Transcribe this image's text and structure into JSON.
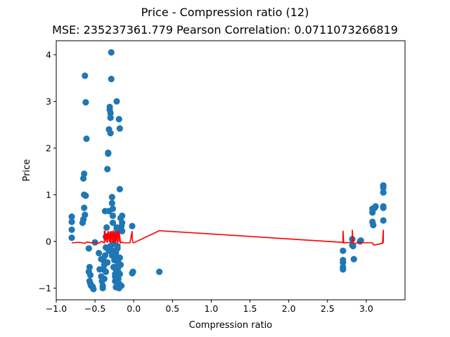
{
  "chart_data": {
    "type": "scatter",
    "title": "Price - Compression ratio (12)",
    "subtitle": "MSE: 235237361.779 Pearson Correlation: 0.0711073266819",
    "xlabel": "Compression ratio",
    "ylabel": "Price",
    "xlim": [
      -1.0,
      3.5
    ],
    "ylim": [
      -1.25,
      4.3
    ],
    "xticks": [
      "−1.0",
      "−0.5",
      "0.0",
      "0.5",
      "1.0",
      "1.5",
      "2.0",
      "2.5",
      "3.0"
    ],
    "xtick_values": [
      -1.0,
      -0.5,
      0.0,
      0.5,
      1.0,
      1.5,
      2.0,
      2.5,
      3.0
    ],
    "yticks": [
      "−1",
      "0",
      "1",
      "2",
      "3",
      "4"
    ],
    "ytick_values": [
      -1,
      0,
      1,
      2,
      3,
      4
    ],
    "grid": false,
    "colors": {
      "scatter": "#1f77b4",
      "line": "#ff0000"
    },
    "scatter": {
      "x": [
        -0.8,
        -0.8,
        -0.8,
        -0.8,
        -0.64,
        -0.63,
        -0.65,
        -0.66,
        -0.65,
        -0.64,
        -0.64,
        -0.62,
        -0.63,
        -0.62,
        -0.61,
        -0.58,
        -0.57,
        -0.57,
        -0.58,
        -0.56,
        -0.56,
        -0.55,
        -0.53,
        -0.52,
        -0.5,
        -0.45,
        -0.44,
        -0.42,
        -0.41,
        -0.4,
        -0.4,
        -0.39,
        -0.38,
        -0.37,
        -0.37,
        -0.36,
        -0.36,
        -0.35,
        -0.34,
        -0.33,
        -0.33,
        -0.32,
        -0.31,
        -0.31,
        -0.3,
        -0.3,
        -0.3,
        -0.29,
        -0.29,
        -0.28,
        -0.28,
        -0.27,
        -0.27,
        -0.27,
        -0.26,
        -0.26,
        -0.25,
        -0.25,
        -0.25,
        -0.24,
        -0.24,
        -0.23,
        -0.23,
        -0.23,
        -0.22,
        -0.22,
        -0.22,
        -0.21,
        -0.21,
        -0.21,
        -0.2,
        -0.2,
        -0.2,
        -0.2,
        -0.19,
        -0.19,
        -0.19,
        -0.18,
        -0.18,
        -0.18,
        -0.18,
        -0.17,
        -0.16,
        -0.15,
        -0.15,
        -0.15,
        -0.38,
        -0.39,
        -0.28,
        -0.2,
        -0.21,
        -0.42,
        -0.36,
        -0.34,
        -0.32,
        -0.24,
        -0.26,
        -0.23,
        -0.17,
        -0.16,
        -0.22,
        -0.3,
        -0.32,
        -0.02,
        -0.02,
        -0.01,
        0.33,
        2.7,
        2.7,
        2.7,
        2.7,
        2.7,
        2.82,
        2.82,
        2.84,
        2.83,
        2.92,
        2.93,
        3.08,
        3.08,
        3.08,
        3.09,
        3.11,
        3.12,
        3.22,
        3.22,
        3.22,
        3.22,
        3.22,
        3.22
      ],
      "y": [
        0.53,
        0.42,
        0.25,
        0.08,
        0.72,
        0.57,
        0.47,
        0.4,
        1.35,
        1.45,
        1.0,
        0.98,
        3.55,
        2.98,
        2.2,
        -0.15,
        -0.55,
        -0.85,
        -0.65,
        -0.72,
        -0.9,
        -0.95,
        -0.97,
        -1.02,
        -0.02,
        -0.25,
        -0.6,
        -0.75,
        -0.85,
        -0.95,
        -1.0,
        -0.4,
        -0.5,
        -0.3,
        0.65,
        -0.13,
        0.1,
        0.3,
        1.55,
        1.88,
        1.9,
        2.4,
        2.88,
        2.82,
        2.32,
        2.65,
        2.75,
        3.48,
        4.05,
        0.95,
        0.82,
        0.7,
        0.55,
        0.4,
        -0.05,
        0.1,
        -0.2,
        -0.4,
        -0.55,
        -0.7,
        -0.85,
        -0.98,
        -0.6,
        -0.75,
        -0.88,
        0.3,
        0.28,
        0.2,
        -0.15,
        -0.35,
        -0.45,
        -0.55,
        -0.65,
        -0.8,
        -0.9,
        -1.0,
        2.62,
        2.42,
        1.12,
        -0.35,
        -0.7,
        0.5,
        0.32,
        0.22,
        0.4,
        0.55,
        -0.8,
        -0.6,
        -0.3,
        -0.5,
        -0.1,
        -0.38,
        -0.65,
        -0.45,
        -0.2,
        -0.75,
        -0.55,
        -0.25,
        -0.5,
        -0.95,
        3.0,
        -0.1,
        0.65,
        0.33,
        -0.68,
        -0.65,
        -0.65,
        -0.2,
        -0.4,
        -0.45,
        -0.55,
        -0.6,
        0.05,
        -0.08,
        -0.38,
        -0.1,
        0.0,
        0.02,
        0.62,
        0.7,
        0.42,
        0.35,
        0.72,
        0.75,
        1.2,
        1.15,
        1.05,
        0.75,
        0.45,
        0.72
      ],
      "color": "#1f77b4"
    },
    "line": {
      "x": [
        -0.8,
        -0.7,
        -0.63,
        -0.6,
        -0.55,
        -0.5,
        -0.45,
        -0.42,
        -0.38,
        -0.38,
        -0.37,
        -0.36,
        -0.35,
        -0.34,
        -0.34,
        -0.33,
        -0.32,
        -0.31,
        -0.31,
        -0.3,
        -0.3,
        -0.29,
        -0.28,
        -0.28,
        -0.27,
        -0.26,
        -0.26,
        -0.25,
        -0.25,
        -0.24,
        -0.23,
        -0.23,
        -0.22,
        -0.21,
        -0.21,
        -0.2,
        -0.19,
        -0.19,
        -0.18,
        -0.17,
        -0.16,
        -0.15,
        -0.12,
        -0.05,
        -0.02,
        -0.02,
        -0.01,
        0.0,
        0.33,
        2.7,
        2.7,
        2.71,
        2.82,
        2.82,
        2.83,
        2.84,
        2.9,
        3.0,
        3.08,
        3.1,
        3.21,
        3.22,
        3.22
      ],
      "y": [
        -0.03,
        -0.02,
        -0.04,
        -0.01,
        -0.03,
        -0.02,
        -0.04,
        0.0,
        -0.03,
        0.22,
        0.22,
        -0.02,
        0.15,
        0.18,
        -0.03,
        0.22,
        0.05,
        -0.02,
        0.2,
        0.2,
        -0.03,
        0.22,
        0.08,
        -0.02,
        0.22,
        0.22,
        -0.04,
        0.12,
        0.2,
        -0.03,
        0.18,
        0.0,
        0.22,
        -0.04,
        0.15,
        0.2,
        -0.02,
        0.22,
        0.1,
        -0.03,
        -0.01,
        -0.02,
        -0.03,
        -0.03,
        0.22,
        0.05,
        -0.02,
        -0.03,
        0.23,
        -0.02,
        0.23,
        -0.03,
        -0.02,
        0.25,
        -0.02,
        -0.05,
        -0.02,
        -0.03,
        -0.03,
        -0.08,
        -0.04,
        0.25,
        -0.03
      ],
      "color": "#ff0000"
    }
  }
}
